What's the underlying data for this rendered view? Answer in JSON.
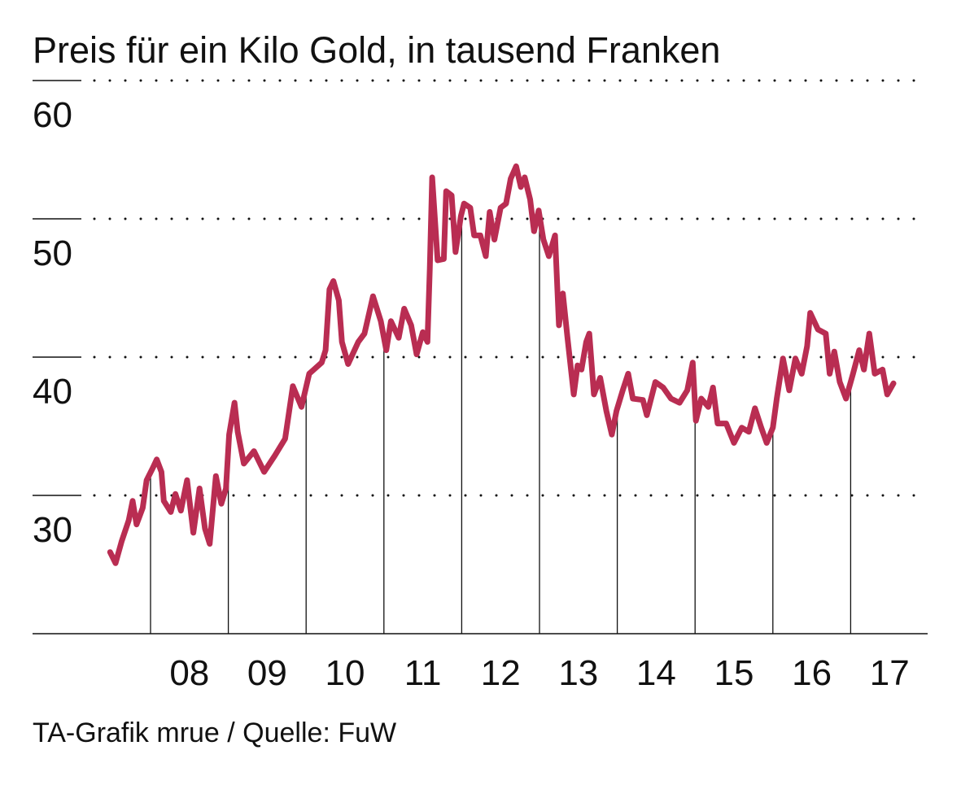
{
  "chart_data": {
    "type": "line",
    "title": "Preis für ein Kilo Gold, in tausend Franken",
    "source": "TA-Grafik mrue / Quelle: FuW",
    "xlabel": "",
    "ylabel": "",
    "ylim": [
      20,
      60
    ],
    "xlim": [
      2007.0,
      2018.0
    ],
    "yticks": [
      30,
      40,
      50,
      60
    ],
    "ytick_labels": [
      "30",
      "40",
      "50",
      "60"
    ],
    "xtick_years": [
      2008,
      2009,
      2010,
      2011,
      2012,
      2013,
      2014,
      2015,
      2016,
      2017
    ],
    "xtick_labels": [
      "08",
      "09",
      "10",
      "11",
      "12",
      "13",
      "14",
      "15",
      "16",
      "17"
    ],
    "grid": "dotted horizontal",
    "line_color": "#b92d52",
    "series": [
      {
        "x": [
          2007.48,
          2007.55,
          2007.63,
          2007.72,
          2007.77,
          2007.82,
          2007.9,
          2007.95,
          2008.03,
          2008.08,
          2008.14,
          2008.17,
          2008.26,
          2008.32,
          2008.39,
          2008.47,
          2008.55,
          2008.63,
          2008.7,
          2008.76,
          2008.84,
          2008.91,
          2008.97,
          2009.01,
          2009.08,
          2009.12,
          2009.2,
          2009.33,
          2009.46,
          2009.6,
          2009.73,
          2009.83,
          2009.94,
          2010.04,
          2010.2,
          2010.25,
          2010.3,
          2010.35,
          2010.42,
          2010.46,
          2010.54,
          2010.67,
          2010.75,
          2010.86,
          2010.96,
          2011.03,
          2011.09,
          2011.19,
          2011.26,
          2011.35,
          2011.42,
          2011.5,
          2011.56,
          2011.59,
          2011.62,
          2011.69,
          2011.77,
          2011.8,
          2011.87,
          2011.92,
          2011.99,
          2012.03,
          2012.11,
          2012.16,
          2012.24,
          2012.31,
          2012.36,
          2012.42,
          2012.5,
          2012.57,
          2012.63,
          2012.7,
          2012.76,
          2012.81,
          2012.88,
          2012.93,
          2012.99,
          2013.05,
          2013.12,
          2013.2,
          2013.25,
          2013.3,
          2013.36,
          2013.44,
          2013.49,
          2013.54,
          2013.6,
          2013.64,
          2013.7,
          2013.78,
          2013.86,
          2013.93,
          2013.99,
          2014.07,
          2014.14,
          2014.2,
          2014.33,
          2014.38,
          2014.49,
          2014.59,
          2014.69,
          2014.8,
          2014.9,
          2014.97,
          2015.01,
          2015.08,
          2015.17,
          2015.23,
          2015.29,
          2015.4,
          2015.5,
          2015.6,
          2015.69,
          2015.77,
          2015.85,
          2015.92,
          2016.0,
          2016.05,
          2016.13,
          2016.21,
          2016.29,
          2016.37,
          2016.44,
          2016.48,
          2016.58,
          2016.68,
          2016.73,
          2016.79,
          2016.86,
          2016.94,
          2017.03,
          2017.11,
          2017.17,
          2017.24,
          2017.31,
          2017.41,
          2017.47,
          2017.55
        ],
        "values": [
          25.9,
          25.1,
          26.7,
          28.2,
          29.6,
          27.9,
          29.1,
          31.1,
          32.0,
          32.6,
          31.7,
          29.6,
          28.8,
          30.1,
          28.9,
          31.1,
          27.3,
          30.5,
          27.6,
          26.5,
          31.4,
          29.4,
          30.5,
          34.4,
          36.7,
          34.6,
          32.3,
          33.2,
          31.7,
          32.9,
          34.1,
          37.9,
          36.4,
          38.8,
          39.6,
          40.5,
          44.9,
          45.5,
          44.1,
          41.1,
          39.5,
          41.1,
          41.7,
          44.4,
          42.6,
          40.5,
          42.6,
          41.4,
          43.5,
          42.3,
          40.2,
          41.8,
          41.1,
          46.4,
          53.0,
          47.0,
          47.1,
          52.0,
          51.7,
          47.6,
          50.2,
          51.1,
          50.8,
          48.8,
          48.8,
          47.3,
          50.5,
          48.5,
          50.8,
          51.1,
          52.9,
          53.8,
          52.3,
          53.0,
          51.4,
          49.1,
          50.6,
          48.5,
          47.3,
          48.8,
          42.3,
          44.6,
          41.4,
          37.3,
          39.4,
          39.1,
          41.1,
          41.7,
          37.3,
          38.5,
          36.1,
          34.4,
          36.1,
          37.6,
          38.8,
          37.0,
          36.9,
          35.8,
          38.2,
          37.8,
          37.0,
          36.7,
          37.6,
          39.6,
          35.4,
          37.0,
          36.4,
          37.8,
          35.2,
          35.2,
          33.8,
          34.9,
          34.6,
          36.3,
          34.9,
          33.8,
          34.9,
          37.0,
          39.9,
          37.6,
          39.9,
          38.8,
          40.8,
          43.2,
          42.0,
          41.7,
          38.8,
          40.4,
          38.2,
          37.0,
          38.8,
          40.5,
          39.1,
          41.7,
          38.8,
          39.1,
          37.3,
          38.1
        ]
      }
    ]
  }
}
